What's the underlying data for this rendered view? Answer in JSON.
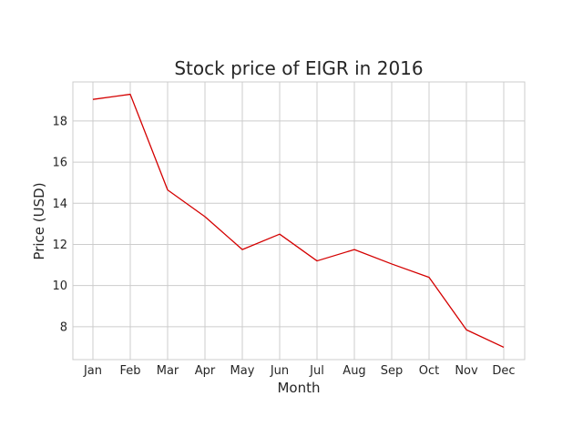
{
  "chart_data": {
    "type": "line",
    "title": "Stock price of EIGR in 2016",
    "xlabel": "Month",
    "ylabel": "Price (USD)",
    "categories": [
      "Jan",
      "Feb",
      "Mar",
      "Apr",
      "May",
      "Jun",
      "Jul",
      "Aug",
      "Sep",
      "Oct",
      "Nov",
      "Dec"
    ],
    "series": [
      {
        "values": [
          19.05,
          19.3,
          14.65,
          13.35,
          11.75,
          12.5,
          11.2,
          11.75,
          11.05,
          10.4,
          7.85,
          7.0
        ],
        "color": "#d40000"
      }
    ],
    "yticks": [
      8,
      10,
      12,
      14,
      16,
      18
    ],
    "ylim": [
      6.4,
      19.9
    ],
    "grid": true,
    "legend": "none"
  }
}
